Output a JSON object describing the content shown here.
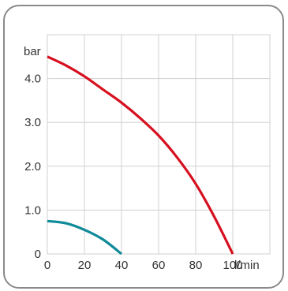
{
  "chart_data": {
    "type": "line",
    "title": "",
    "xlabel": "l/min",
    "ylabel": "bar",
    "xlim": [
      0,
      120
    ],
    "ylim": [
      0,
      5
    ],
    "x_ticks": [
      "0",
      "20",
      "40",
      "60",
      "80",
      "100"
    ],
    "y_ticks": [
      "0",
      "1.0",
      "2.0",
      "3.0",
      "4.0"
    ],
    "grid": true,
    "legend": "none",
    "series": [
      {
        "color": "#d6101f",
        "x": [
          0,
          10,
          20,
          30,
          40,
          50,
          60,
          70,
          80,
          90,
          100
        ],
        "y": [
          4.5,
          4.3,
          4.05,
          3.75,
          3.45,
          3.1,
          2.7,
          2.2,
          1.6,
          0.85,
          0.0
        ]
      },
      {
        "color": "#0f8a98",
        "x": [
          0,
          10,
          20,
          30,
          40
        ],
        "y": [
          0.75,
          0.7,
          0.55,
          0.33,
          0.0
        ]
      }
    ]
  }
}
